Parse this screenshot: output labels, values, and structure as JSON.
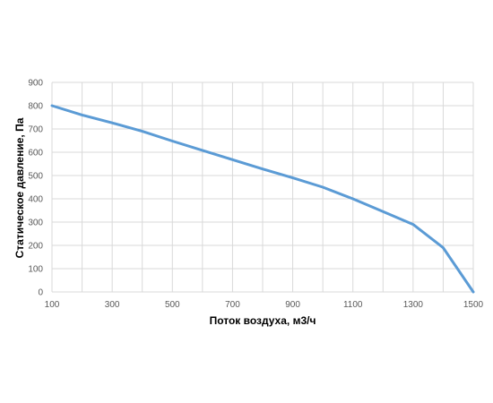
{
  "chart_data": {
    "type": "line",
    "xlabel": "Поток воздуха, м3/ч",
    "ylabel": "Статическое давление, Па",
    "xlim": [
      100,
      1500
    ],
    "ylim": [
      0,
      900
    ],
    "x_ticks": [
      "100",
      "300",
      "500",
      "700",
      "900",
      "1100",
      "1300",
      "1500"
    ],
    "y_ticks": [
      "0",
      "100",
      "200",
      "300",
      "400",
      "500",
      "600",
      "700",
      "800",
      "900"
    ],
    "grid": true,
    "series": [
      {
        "color": "#5b9bd5",
        "x": [
          100,
          200,
          300,
          400,
          500,
          600,
          700,
          800,
          900,
          1000,
          1100,
          1200,
          1300,
          1400,
          1500
        ],
        "y": [
          800,
          760,
          726,
          690,
          648,
          608,
          568,
          528,
          490,
          450,
          400,
          345,
          290,
          190,
          0
        ]
      }
    ]
  }
}
